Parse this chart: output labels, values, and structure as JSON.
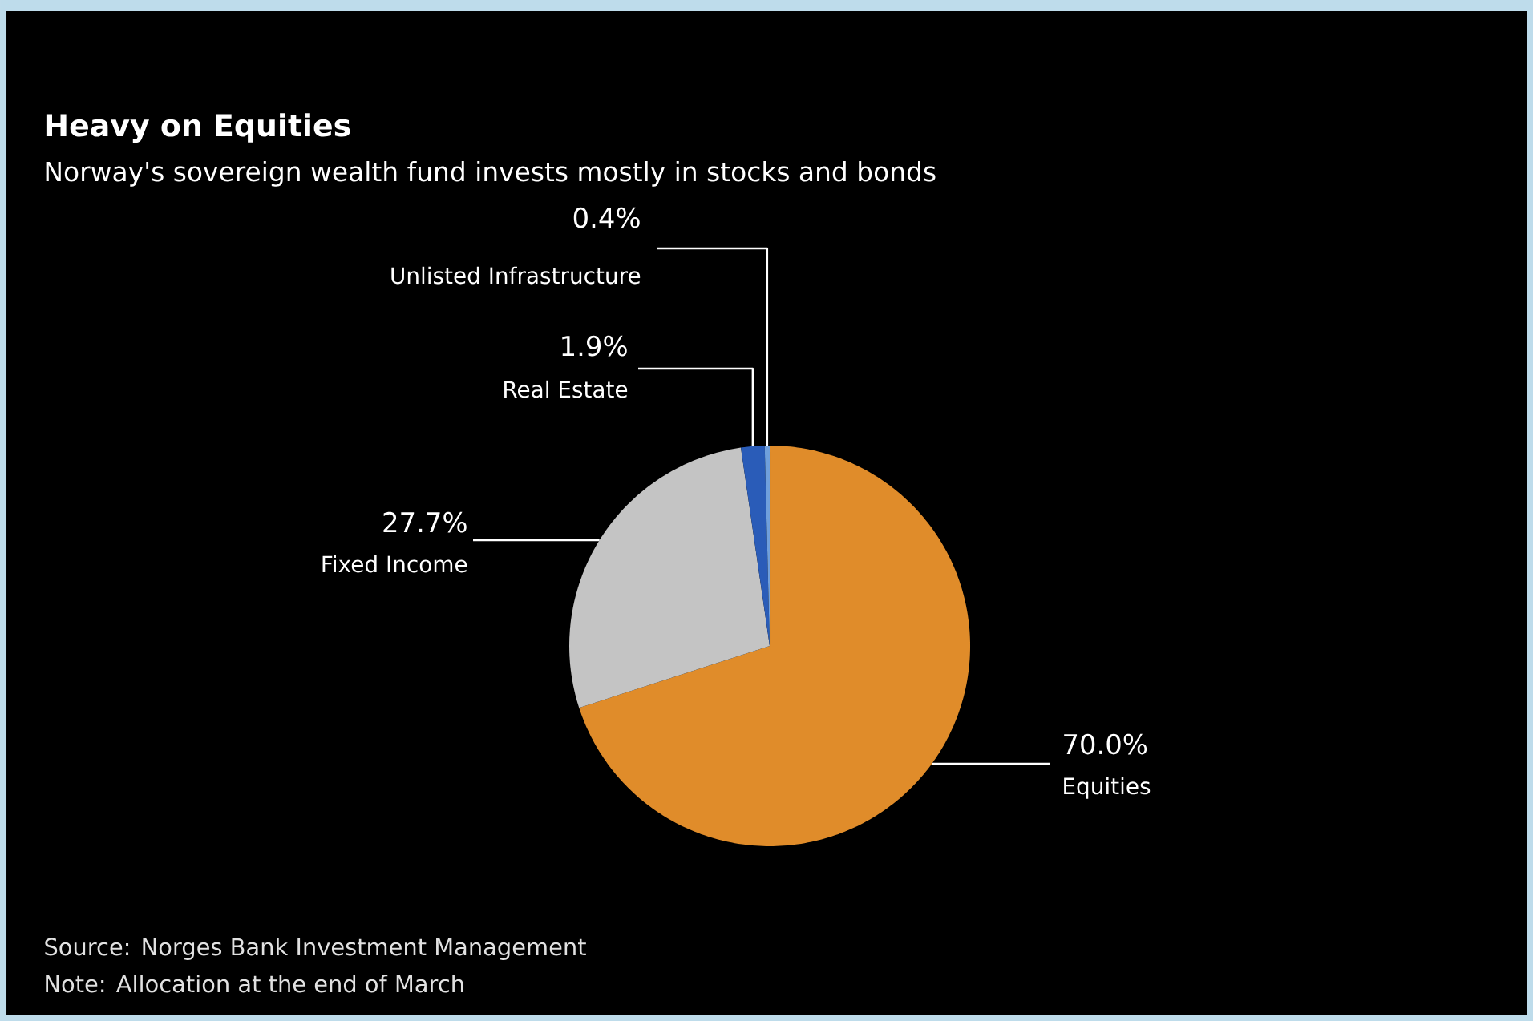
{
  "chart_data": {
    "type": "pie",
    "title": "Heavy on Equities",
    "subtitle": "Norway's sovereign wealth fund invests mostly in stocks and bonds",
    "categories": [
      "Equities",
      "Fixed Income",
      "Real Estate",
      "Unlisted Infrastructure"
    ],
    "values": [
      70.0,
      27.7,
      1.9,
      0.4
    ],
    "value_labels": [
      "70.0%",
      "27.7%",
      "1.9%",
      "0.4%"
    ],
    "colors": [
      "#e08c2a",
      "#c4c4c4",
      "#2a5cb8",
      "#6f9fdc"
    ],
    "annotations": [
      "Source: Norges Bank Investment Management",
      "Note: Allocation at the end of March"
    ]
  }
}
